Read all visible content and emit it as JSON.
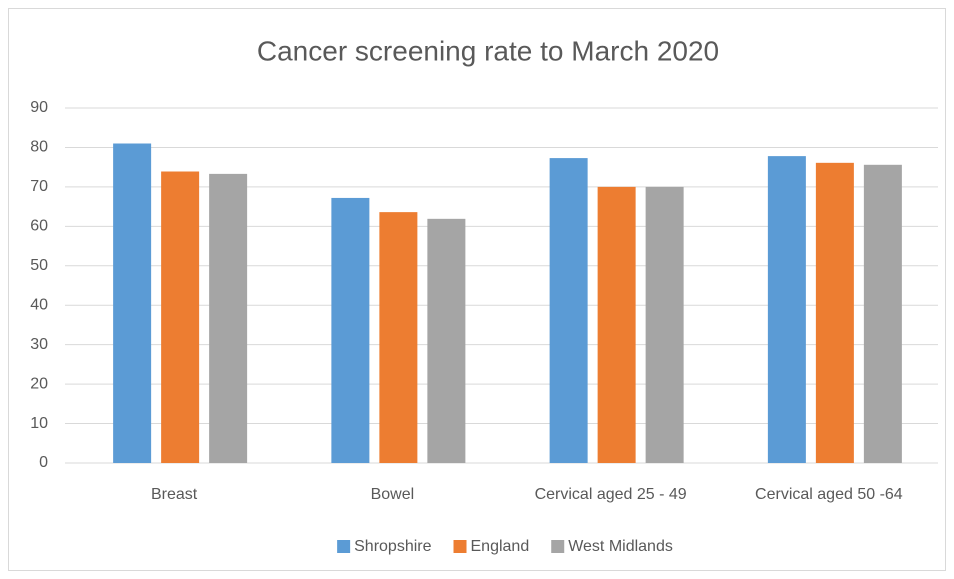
{
  "chart_data": {
    "type": "bar",
    "title": "Cancer screening rate to March 2020",
    "categories": [
      "Breast",
      "Bowel",
      "Cervical aged 25 - 49",
      "Cervical aged 50 -64"
    ],
    "series": [
      {
        "name": "Shropshire",
        "color": "#5b9bd5",
        "values": [
          81,
          67.2,
          77.3,
          77.8
        ]
      },
      {
        "name": "England",
        "color": "#ed7d31",
        "values": [
          73.9,
          63.6,
          70,
          76.1
        ]
      },
      {
        "name": "West Midlands",
        "color": "#a5a5a5",
        "values": [
          73.3,
          61.9,
          70,
          75.6
        ]
      }
    ],
    "ylim": [
      0,
      90
    ],
    "yticks": [
      0,
      10,
      20,
      30,
      40,
      50,
      60,
      70,
      80,
      90
    ],
    "grid": true,
    "legend": "bottom"
  }
}
